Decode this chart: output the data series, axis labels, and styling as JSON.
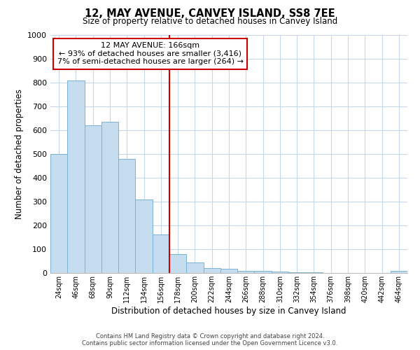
{
  "title": "12, MAY AVENUE, CANVEY ISLAND, SS8 7EE",
  "subtitle": "Size of property relative to detached houses in Canvey Island",
  "xlabel": "Distribution of detached houses by size in Canvey Island",
  "ylabel": "Number of detached properties",
  "bar_color": "#c6ddef",
  "bar_edge_color": "#7ab3d4",
  "bin_labels": [
    "24sqm",
    "46sqm",
    "68sqm",
    "90sqm",
    "112sqm",
    "134sqm",
    "156sqm",
    "178sqm",
    "200sqm",
    "222sqm",
    "244sqm",
    "266sqm",
    "288sqm",
    "310sqm",
    "332sqm",
    "354sqm",
    "376sqm",
    "398sqm",
    "420sqm",
    "442sqm",
    "464sqm"
  ],
  "bar_values": [
    500,
    810,
    620,
    635,
    480,
    310,
    162,
    80,
    45,
    22,
    18,
    10,
    8,
    5,
    3,
    2,
    1,
    1,
    0,
    0,
    8
  ],
  "ylim": [
    0,
    1000
  ],
  "yticks": [
    0,
    100,
    200,
    300,
    400,
    500,
    600,
    700,
    800,
    900,
    1000
  ],
  "property_line_x": 6.5,
  "annotation_title": "12 MAY AVENUE: 166sqm",
  "annotation_line1": "← 93% of detached houses are smaller (3,416)",
  "annotation_line2": "7% of semi-detached houses are larger (264) →",
  "annotation_box_color": "#ffffff",
  "annotation_box_edge": "#cc0000",
  "property_line_color": "#cc0000",
  "footer_line1": "Contains HM Land Registry data © Crown copyright and database right 2024.",
  "footer_line2": "Contains public sector information licensed under the Open Government Licence v3.0.",
  "background_color": "#ffffff",
  "grid_color": "#c8d8ec"
}
